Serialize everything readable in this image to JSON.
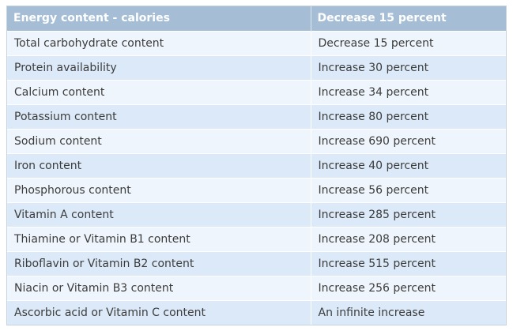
{
  "table": {
    "headers": [
      "Energy content - calories",
      "Decrease 15 percent"
    ],
    "rows": [
      [
        "Total carbohydrate content",
        "Decrease 15 percent"
      ],
      [
        "Protein availability",
        "Increase 30 percent"
      ],
      [
        "Calcium content",
        "Increase 34 percent"
      ],
      [
        "Potassium content",
        "Increase 80 percent"
      ],
      [
        "Sodium content",
        "Increase 690 percent"
      ],
      [
        "Iron content",
        "Increase 40 percent"
      ],
      [
        "Phosphorous content",
        "Increase 56 percent"
      ],
      [
        "Vitamin A content",
        "Increase 285 percent"
      ],
      [
        "Thiamine or Vitamin B1 content",
        "Increase 208 percent"
      ],
      [
        "Riboflavin or Vitamin B2 content",
        "Increase 515 percent"
      ],
      [
        "Niacin or Vitamin B3 content",
        "Increase 256 percent"
      ],
      [
        "Ascorbic acid or Vitamin C content",
        "An infinite increase"
      ]
    ],
    "colors": {
      "header_bg": "#a5bed6",
      "row_light": "#eef5fc",
      "row_dark": "#dbe9f8",
      "text": "#3c3c3c"
    }
  }
}
